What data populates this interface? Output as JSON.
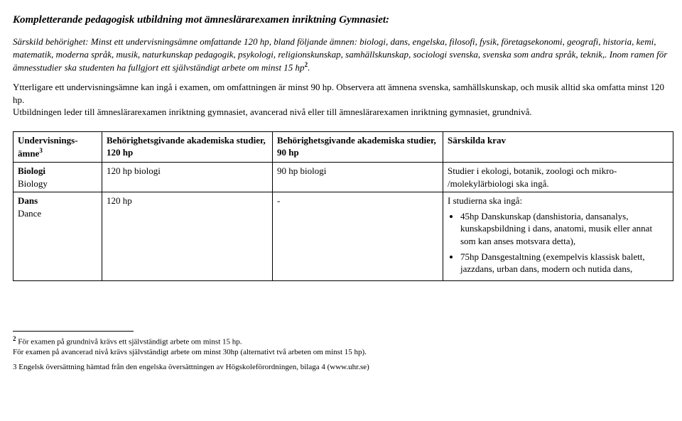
{
  "title": "Kompletterande pedagogisk utbildning mot ämneslärarexamen inriktning Gymnasiet:",
  "p1": "Särskild behörighet: Minst ett undervisningsämne omfattande 120 hp, bland följande ämnen: biologi, dans, engelska, filosofi, fysik, företagsekonomi, geografi, historia, kemi, matematik, moderna språk, musik, naturkunskap pedagogik, psykologi, religionskunskap, samhällskunskap, sociologi svenska, svenska som andra språk, teknik,. Inom ramen för ämnesstudier ska studenten ha fullgjort ett självständigt arbete om minst 15 hp",
  "p1_sup": "2",
  "p1_tail": ".",
  "p2a": "Ytterligare ett undervisningsämne kan ingå i examen, om omfattningen är minst 90 hp. Observera att ämnena svenska, samhällskunskap, och musik alltid ska omfatta minst 120 hp.",
  "p2b": "Utbildningen leder till ämneslärarexamen inriktning gymnasiet, avancerad nivå eller till ämneslärarexamen inriktning gymnasiet, grundnivå.",
  "headers": {
    "subj_a": "Undervisnings-",
    "subj_b": "ämne",
    "subj_sup": "3",
    "col120": "Behörighetsgivande akademiska studier, 120 hp",
    "col90": "Behörighetsgivande akademiska studier, 90 hp",
    "krav": "Särskilda krav"
  },
  "rows": [
    {
      "subj_sv": "Biologi",
      "subj_en": "Biology",
      "c120": "120 hp biologi",
      "c90": "90 hp biologi",
      "krav_text": "Studier i ekologi, botanik, zoologi och mikro- /molekylärbiologi ska ingå.",
      "krav_list": []
    },
    {
      "subj_sv": "Dans",
      "subj_en": "Dance",
      "c120": "120 hp",
      "c90": "-",
      "krav_text": "I studierna ska ingå:",
      "krav_list": [
        "45hp Danskunskap (danshistoria, dansanalys, kunskapsbildning i dans, anatomi, musik eller annat som kan anses motsvara detta),",
        "75hp Dansgestaltning (exempelvis klassisk balett, jazzdans, urban dans, modern och nutida dans,"
      ]
    }
  ],
  "footnotes": {
    "f2a": "För examen på grundnivå krävs ett självständigt arbete om minst 15 hp.",
    "f2b": "För examen på avancerad nivå krävs självständigt arbete om minst 30hp (alternativt två arbeten om minst 15 hp).",
    "f3": "3 Engelsk översättning hämtad från den engelska översättningen av Högskoleförordningen, bilaga 4 (www.uhr.se)"
  }
}
